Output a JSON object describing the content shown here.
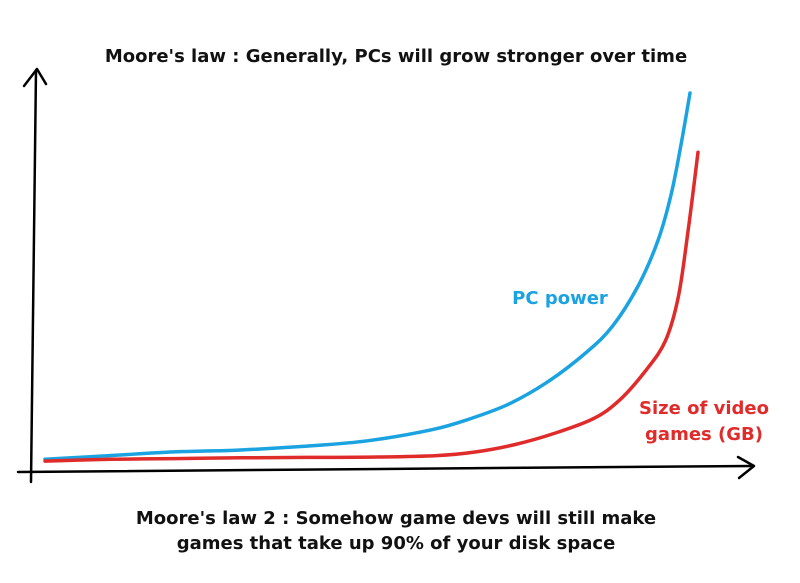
{
  "chart_data": {
    "type": "line",
    "title": "Moore's law : Generally, PCs will grow stronger over time",
    "caption": [
      "Moore's law 2 : Somehow game devs will still make",
      "games that take up 90% of your disk space"
    ],
    "xlabel": "",
    "ylabel": "",
    "xlim": [
      0,
      100
    ],
    "ylim": [
      0,
      100
    ],
    "grid": false,
    "legend": "inline",
    "series": [
      {
        "name": "PC power",
        "label_lines": [
          "PC power"
        ],
        "color": "#1aa3e0",
        "x": [
          0,
          10,
          20,
          30,
          40,
          50,
          60,
          66,
          72,
          78,
          84,
          88,
          92,
          95,
          97,
          98.5,
          100
        ],
        "y": [
          1,
          2,
          3,
          3.5,
          4.5,
          6,
          9,
          12,
          16,
          22,
          30,
          37,
          48,
          60,
          72,
          85,
          100
        ]
      },
      {
        "name": "Size of video games (GB)",
        "label_lines": [
          "Size of video",
          "games (GB)"
        ],
        "color": "#e02b2b",
        "x": [
          0,
          10,
          20,
          30,
          40,
          50,
          60,
          66,
          72,
          78,
          84,
          88,
          92,
          95,
          97,
          98.5,
          100
        ],
        "y": [
          0.5,
          1,
          1.2,
          1.4,
          1.5,
          1.6,
          2,
          3,
          5,
          8,
          12,
          17,
          25,
          33,
          45,
          63,
          84
        ]
      }
    ]
  }
}
